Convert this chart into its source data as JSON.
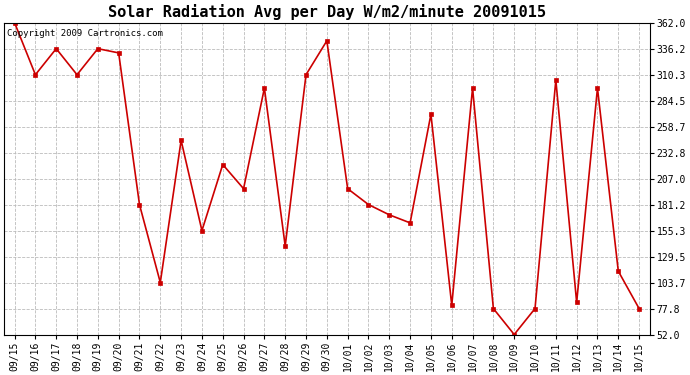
{
  "title": "Solar Radiation Avg per Day W/m2/minute 20091015",
  "copyright_text": "Copyright 2009 Cartronics.com",
  "dates": [
    "09/15",
    "09/16",
    "09/17",
    "09/18",
    "09/19",
    "09/20",
    "09/21",
    "09/22",
    "09/23",
    "09/24",
    "09/25",
    "09/26",
    "09/27",
    "09/28",
    "09/29",
    "09/30",
    "10/01",
    "10/02",
    "10/03",
    "10/04",
    "10/05",
    "10/06",
    "10/07",
    "10/08",
    "10/09",
    "10/10",
    "10/11",
    "10/12",
    "10/13",
    "10/14",
    "10/15"
  ],
  "values": [
    362.0,
    310.3,
    336.2,
    310.3,
    336.2,
    332.0,
    181.2,
    103.7,
    245.0,
    155.3,
    221.0,
    197.0,
    297.0,
    140.0,
    310.3,
    344.0,
    197.0,
    181.2,
    171.0,
    163.0,
    271.0,
    81.0,
    297.0,
    77.8,
    52.0,
    77.8,
    305.0,
    84.0,
    297.0,
    115.0,
    77.8
  ],
  "yticks": [
    52.0,
    77.8,
    103.7,
    129.5,
    155.3,
    181.2,
    207.0,
    232.8,
    258.7,
    284.5,
    310.3,
    336.2,
    362.0
  ],
  "ylim": [
    52.0,
    362.0
  ],
  "line_color": "#cc0000",
  "marker": "s",
  "marker_size": 2.5,
  "bg_color": "#ffffff",
  "grid_color": "#bbbbbb",
  "title_fontsize": 11,
  "tick_fontsize": 7,
  "copyright_fontsize": 6.5
}
